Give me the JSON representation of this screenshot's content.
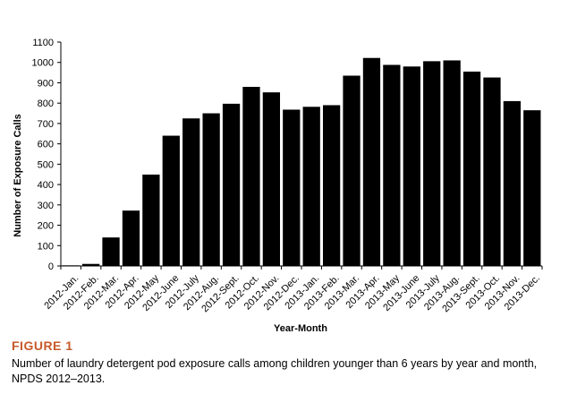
{
  "figure": {
    "label": "FIGURE 1",
    "caption": "Number of laundry detergent pod exposure calls among children younger than 6 years by year and month, NPDS 2012–2013."
  },
  "chart_data": {
    "type": "bar",
    "xlabel": "Year-Month",
    "ylabel": "Number of Exposure Calls",
    "ylim": [
      0,
      1100
    ],
    "yticks": [
      0,
      100,
      200,
      300,
      400,
      500,
      600,
      700,
      800,
      900,
      1000,
      1100
    ],
    "grid": false,
    "bar_color": "#000000",
    "categories": [
      "2012-Jan.",
      "2012-Feb.",
      "2012-Mar.",
      "2012-Apr.",
      "2012-May",
      "2012-June",
      "2012-July",
      "2012-Aug.",
      "2012-Sept.",
      "2012-Oct.",
      "2012-Nov.",
      "2012-Dec.",
      "2013-Jan.",
      "2013-Feb.",
      "2013-Mar.",
      "2013-Apr.",
      "2013-May",
      "2013-June",
      "2013-July",
      "2013-Aug.",
      "2013-Sept.",
      "2013-Oct.",
      "2013-Nov.",
      "2013-Dec."
    ],
    "values": [
      3,
      10,
      140,
      272,
      449,
      640,
      725,
      750,
      797,
      880,
      853,
      768,
      782,
      790,
      935,
      1022,
      988,
      980,
      1006,
      1010,
      955,
      926,
      810,
      765
    ]
  }
}
